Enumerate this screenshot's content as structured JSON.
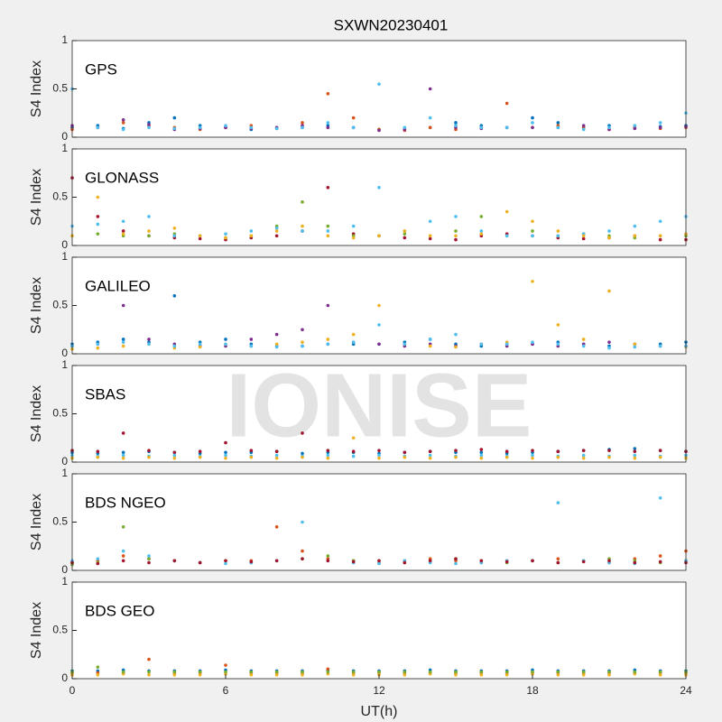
{
  "watermark": "IONISE",
  "chart_data": [
    {
      "type": "scatter",
      "title": "SXWN20230401",
      "label": "GPS",
      "ylabel": "S4 Index",
      "xlim": [
        0,
        24
      ],
      "ylim": [
        0,
        1
      ],
      "yticks": [
        0,
        0.5,
        1
      ],
      "x": [
        0,
        1,
        2,
        3,
        4,
        5,
        6,
        7,
        8,
        9,
        10,
        11,
        12,
        13,
        14,
        15,
        16,
        17,
        18,
        19,
        20,
        21,
        22,
        23,
        24
      ],
      "series": [
        {
          "color": "#0072BD",
          "values": [
            0.1,
            0.12,
            0.09,
            0.15,
            0.2,
            0.12,
            0.1,
            0.08,
            0.09,
            0.1,
            0.12,
            0.1,
            0.08,
            0.09,
            0.1,
            0.15,
            0.12,
            0.1,
            0.2,
            0.15,
            0.1,
            0.12,
            0.1,
            0.11,
            0.12
          ]
        },
        {
          "color": "#D95319",
          "values": [
            0.08,
            0.1,
            0.15,
            0.12,
            0.1,
            0.08,
            0.1,
            0.12,
            0.1,
            0.15,
            0.45,
            0.2,
            0.08,
            0.07,
            0.1,
            0.08,
            0.1,
            0.35,
            0.1,
            0.12,
            0.1,
            0.08,
            0.1,
            0.09,
            0.1
          ]
        },
        {
          "color": "#7E2F8E",
          "values": [
            0.12,
            0.1,
            0.18,
            0.13,
            0.08,
            0.09,
            0.1,
            0.09,
            0.1,
            0.12,
            0.1,
            0.1,
            0.07,
            0.08,
            0.5,
            0.1,
            0.09,
            0.1,
            0.1,
            0.1,
            0.12,
            0.08,
            0.09,
            0.1,
            0.11
          ]
        },
        {
          "color": "#4DBEEE",
          "values": [
            0.5,
            0.1,
            0.08,
            0.1,
            0.09,
            0.1,
            0.12,
            0.1,
            0.09,
            0.1,
            0.15,
            0.1,
            0.55,
            0.1,
            0.2,
            0.12,
            0.1,
            0.1,
            0.15,
            0.1,
            0.08,
            0.1,
            0.12,
            0.15,
            0.25
          ]
        }
      ]
    },
    {
      "type": "scatter",
      "label": "GLONASS",
      "ylabel": "S4 Index",
      "xlim": [
        0,
        24
      ],
      "ylim": [
        0,
        1
      ],
      "yticks": [
        0,
        0.5,
        1
      ],
      "x": [
        0,
        1,
        2,
        3,
        4,
        5,
        6,
        7,
        8,
        9,
        10,
        11,
        12,
        13,
        14,
        15,
        16,
        17,
        18,
        19,
        20,
        21,
        22,
        23,
        24
      ],
      "series": [
        {
          "color": "#A2142F",
          "values": [
            0.7,
            0.3,
            0.15,
            0.1,
            0.08,
            0.07,
            0.06,
            0.08,
            0.1,
            0.15,
            0.6,
            0.12,
            0.1,
            0.08,
            0.07,
            0.06,
            0.1,
            0.12,
            0.1,
            0.08,
            0.07,
            0.08,
            0.1,
            0.06,
            0.06
          ]
        },
        {
          "color": "#77AC30",
          "values": [
            0.1,
            0.12,
            0.1,
            0.1,
            0.12,
            0.1,
            0.08,
            0.1,
            0.2,
            0.45,
            0.2,
            0.1,
            0.1,
            0.12,
            0.1,
            0.15,
            0.3,
            0.1,
            0.15,
            0.1,
            0.12,
            0.1,
            0.08,
            0.1,
            0.1
          ]
        },
        {
          "color": "#4DBEEE",
          "values": [
            0.2,
            0.22,
            0.25,
            0.3,
            0.1,
            0.1,
            0.12,
            0.15,
            0.18,
            0.15,
            0.15,
            0.2,
            0.6,
            0.15,
            0.25,
            0.3,
            0.15,
            0.1,
            0.1,
            0.1,
            0.12,
            0.15,
            0.2,
            0.25,
            0.3
          ]
        },
        {
          "color": "#EDB120",
          "values": [
            0.1,
            0.5,
            0.12,
            0.15,
            0.18,
            0.1,
            0.08,
            0.1,
            0.15,
            0.2,
            0.1,
            0.08,
            0.1,
            0.15,
            0.1,
            0.1,
            0.12,
            0.35,
            0.25,
            0.15,
            0.1,
            0.08,
            0.1,
            0.1,
            0.12
          ]
        }
      ]
    },
    {
      "type": "scatter",
      "label": "GALILEO",
      "ylabel": "S4 Index",
      "xlim": [
        0,
        24
      ],
      "ylim": [
        0,
        1
      ],
      "yticks": [
        0,
        0.5,
        1
      ],
      "x": [
        0,
        1,
        2,
        3,
        4,
        5,
        6,
        7,
        8,
        9,
        10,
        11,
        12,
        13,
        14,
        15,
        16,
        17,
        18,
        19,
        20,
        21,
        22,
        23,
        24
      ],
      "series": [
        {
          "color": "#0072BD",
          "values": [
            0.1,
            0.12,
            0.15,
            0.12,
            0.6,
            0.12,
            0.15,
            0.1,
            0.08,
            0.08,
            0.1,
            0.1,
            0.1,
            0.12,
            0.15,
            0.1,
            0.08,
            0.1,
            0.1,
            0.12,
            0.1,
            0.08,
            0.1,
            0.1,
            0.12
          ]
        },
        {
          "color": "#7E2F8E",
          "values": [
            0.08,
            0.1,
            0.5,
            0.15,
            0.1,
            0.08,
            0.08,
            0.15,
            0.2,
            0.25,
            0.5,
            0.12,
            0.1,
            0.08,
            0.1,
            0.08,
            0.1,
            0.08,
            0.1,
            0.08,
            0.1,
            0.12,
            0.1,
            0.08,
            0.08
          ]
        },
        {
          "color": "#EDB120",
          "values": [
            0.05,
            0.06,
            0.08,
            0.1,
            0.06,
            0.07,
            0.1,
            0.08,
            0.1,
            0.12,
            0.15,
            0.2,
            0.5,
            0.1,
            0.08,
            0.07,
            0.1,
            0.12,
            0.75,
            0.3,
            0.15,
            0.65,
            0.1,
            0.08,
            0.07
          ]
        },
        {
          "color": "#4DBEEE",
          "values": [
            0.08,
            0.1,
            0.12,
            0.1,
            0.08,
            0.1,
            0.1,
            0.08,
            0.07,
            0.08,
            0.1,
            0.12,
            0.3,
            0.1,
            0.15,
            0.2,
            0.1,
            0.1,
            0.12,
            0.1,
            0.08,
            0.06,
            0.07,
            0.08,
            0.08
          ]
        }
      ]
    },
    {
      "type": "scatter",
      "label": "SBAS",
      "ylabel": "S4 Index",
      "xlim": [
        0,
        24
      ],
      "ylim": [
        0,
        1
      ],
      "yticks": [
        0,
        0.5,
        1
      ],
      "x": [
        0,
        1,
        2,
        3,
        4,
        5,
        6,
        7,
        8,
        9,
        10,
        11,
        12,
        13,
        14,
        15,
        16,
        17,
        18,
        19,
        20,
        21,
        22,
        23,
        24
      ],
      "series": [
        {
          "color": "#0072BD",
          "values": [
            0.1,
            0.09,
            0.1,
            0.11,
            0.1,
            0.09,
            0.1,
            0.1,
            0.11,
            0.09,
            0.1,
            0.1,
            0.09,
            0.1,
            0.11,
            0.1,
            0.1,
            0.09,
            0.1,
            0.11,
            0.12,
            0.13,
            0.14,
            0.12,
            0.11
          ]
        },
        {
          "color": "#A2142F",
          "values": [
            0.12,
            0.11,
            0.3,
            0.12,
            0.1,
            0.11,
            0.2,
            0.12,
            0.11,
            0.3,
            0.12,
            0.11,
            0.12,
            0.1,
            0.11,
            0.12,
            0.13,
            0.11,
            0.12,
            0.11,
            0.12,
            0.12,
            0.11,
            0.12,
            0.11
          ]
        },
        {
          "color": "#4DBEEE",
          "values": [
            0.07,
            0.06,
            0.07,
            0.06,
            0.07,
            0.06,
            0.07,
            0.06,
            0.07,
            0.06,
            0.07,
            0.06,
            0.07,
            0.06,
            0.07,
            0.06,
            0.07,
            0.06,
            0.07,
            0.06,
            0.07,
            0.06,
            0.07,
            0.06,
            0.07
          ]
        },
        {
          "color": "#EDB120",
          "values": [
            0.04,
            0.05,
            0.04,
            0.05,
            0.04,
            0.05,
            0.04,
            0.05,
            0.04,
            0.05,
            0.04,
            0.25,
            0.04,
            0.05,
            0.04,
            0.05,
            0.04,
            0.05,
            0.04,
            0.05,
            0.04,
            0.05,
            0.04,
            0.05,
            0.04
          ]
        }
      ]
    },
    {
      "type": "scatter",
      "label": "BDS NGEO",
      "ylabel": "S4 Index",
      "xlim": [
        0,
        24
      ],
      "ylim": [
        0,
        1
      ],
      "yticks": [
        0,
        0.5,
        1
      ],
      "x": [
        0,
        1,
        2,
        3,
        4,
        5,
        6,
        7,
        8,
        9,
        10,
        11,
        12,
        13,
        14,
        15,
        16,
        17,
        18,
        19,
        20,
        21,
        22,
        23,
        24
      ],
      "series": [
        {
          "color": "#D95319",
          "values": [
            0.08,
            0.1,
            0.15,
            0.12,
            0.1,
            0.08,
            0.1,
            0.1,
            0.45,
            0.2,
            0.12,
            0.1,
            0.08,
            0.1,
            0.12,
            0.1,
            0.08,
            0.1,
            0.1,
            0.12,
            0.1,
            0.08,
            0.12,
            0.15,
            0.2
          ]
        },
        {
          "color": "#77AC30",
          "values": [
            0.06,
            0.08,
            0.45,
            0.12,
            0.1,
            0.08,
            0.1,
            0.08,
            0.1,
            0.12,
            0.15,
            0.1,
            0.1,
            0.08,
            0.1,
            0.12,
            0.1,
            0.08,
            0.1,
            0.08,
            0.1,
            0.12,
            0.1,
            0.08,
            0.1
          ]
        },
        {
          "color": "#4DBEEE",
          "values": [
            0.1,
            0.12,
            0.2,
            0.15,
            0.1,
            0.08,
            0.07,
            0.08,
            0.1,
            0.5,
            0.1,
            0.08,
            0.07,
            0.1,
            0.08,
            0.07,
            0.08,
            0.1,
            0.1,
            0.7,
            0.1,
            0.08,
            0.07,
            0.75,
            0.1
          ]
        },
        {
          "color": "#A2142F",
          "values": [
            0.08,
            0.07,
            0.1,
            0.08,
            0.1,
            0.08,
            0.1,
            0.09,
            0.1,
            0.12,
            0.1,
            0.09,
            0.1,
            0.08,
            0.1,
            0.12,
            0.1,
            0.09,
            0.1,
            0.08,
            0.09,
            0.1,
            0.08,
            0.09,
            0.08
          ]
        }
      ]
    },
    {
      "type": "scatter",
      "label": "BDS GEO",
      "ylabel": "S4 Index",
      "xlabel": "UT(h)",
      "xlim": [
        0,
        24
      ],
      "xticks": [
        0,
        6,
        12,
        18,
        24
      ],
      "ylim": [
        0,
        1
      ],
      "yticks": [
        0,
        0.5,
        1
      ],
      "x": [
        0,
        1,
        2,
        3,
        4,
        5,
        6,
        7,
        8,
        9,
        10,
        11,
        12,
        13,
        14,
        15,
        16,
        17,
        18,
        19,
        20,
        21,
        22,
        23,
        24
      ],
      "series": [
        {
          "color": "#0072BD",
          "values": [
            0.08,
            0.08,
            0.09,
            0.08,
            0.08,
            0.08,
            0.09,
            0.08,
            0.08,
            0.08,
            0.09,
            0.08,
            0.08,
            0.08,
            0.09,
            0.08,
            0.08,
            0.08,
            0.09,
            0.08,
            0.08,
            0.08,
            0.09,
            0.08,
            0.08
          ]
        },
        {
          "color": "#D95319",
          "values": [
            0.06,
            0.06,
            0.06,
            0.2,
            0.06,
            0.06,
            0.14,
            0.06,
            0.06,
            0.06,
            0.1,
            0.06,
            0.06,
            0.06,
            0.06,
            0.06,
            0.06,
            0.06,
            0.06,
            0.06,
            0.06,
            0.06,
            0.06,
            0.06,
            0.06
          ]
        },
        {
          "color": "#EDB120",
          "values": [
            0.04,
            0.04,
            0.05,
            0.04,
            0.04,
            0.04,
            0.05,
            0.04,
            0.04,
            0.04,
            0.05,
            0.04,
            0.04,
            0.04,
            0.05,
            0.04,
            0.04,
            0.04,
            0.05,
            0.04,
            0.04,
            0.04,
            0.05,
            0.04,
            0.04
          ]
        },
        {
          "color": "#77AC30",
          "values": [
            0.07,
            0.12,
            0.07,
            0.07,
            0.07,
            0.07,
            0.07,
            0.07,
            0.07,
            0.07,
            0.07,
            0.07,
            0.07,
            0.07,
            0.07,
            0.07,
            0.07,
            0.07,
            0.07,
            0.07,
            0.07,
            0.07,
            0.07,
            0.07,
            0.07
          ]
        }
      ]
    }
  ]
}
